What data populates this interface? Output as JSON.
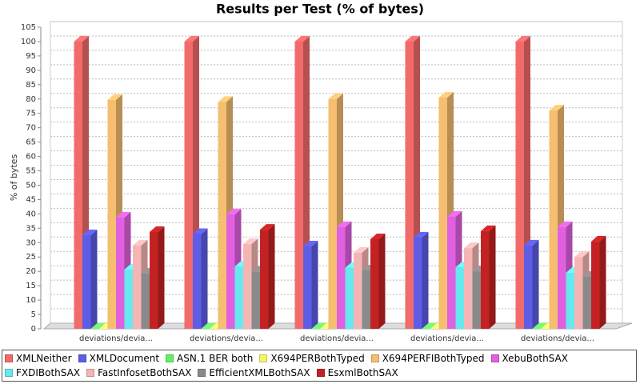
{
  "chart_data": {
    "type": "bar3d",
    "title": "Results per Test (% of bytes)",
    "y_label": "% of bytes",
    "categories": [
      "deviations/devia...",
      "deviations/devia...",
      "deviations/devia...",
      "deviations/devia...",
      "deviations/devia..."
    ],
    "series": [
      {
        "name": "XMLNeither",
        "color": "#f26b6b",
        "values": [
          100,
          100,
          100,
          100,
          100
        ]
      },
      {
        "name": "XMLDocument",
        "color": "#5d5de6",
        "values": [
          32.6,
          33,
          28.7,
          31.8,
          29
        ]
      },
      {
        "name": "ASN.1 BER both",
        "color": "#66ee66",
        "values": [
          0,
          0,
          0,
          0,
          0
        ]
      },
      {
        "name": "X694PERBothTyped",
        "color": "#f5f566",
        "values": [
          0,
          0,
          0,
          0,
          0
        ]
      },
      {
        "name": "X694PERFIBothTyped",
        "color": "#f5be70",
        "values": [
          79.7,
          79,
          80,
          80.5,
          76
        ]
      },
      {
        "name": "XebuBothSAX",
        "color": "#e060e0",
        "values": [
          38.7,
          39.8,
          35.4,
          39,
          35.4
        ]
      },
      {
        "name": "FXDIBothSAX",
        "color": "#66e8ee",
        "values": [
          20.6,
          21.7,
          21.2,
          21.4,
          19.5
        ]
      },
      {
        "name": "FastInfosetBothSAX",
        "color": "#f5b5b5",
        "values": [
          29,
          29.5,
          26.5,
          28.1,
          25
        ]
      },
      {
        "name": "EfficientXMLBothSAX",
        "color": "#8a8a8a",
        "values": [
          19.2,
          19.8,
          20.3,
          20,
          18.1
        ]
      },
      {
        "name": "EsxmlBothSAX",
        "color": "#c42222",
        "values": [
          33.7,
          34.5,
          31.2,
          34,
          30.4
        ]
      }
    ],
    "ylim": [
      0,
      105
    ],
    "yticks": [
      0,
      5,
      10,
      15,
      20,
      25,
      30,
      35,
      40,
      45,
      50,
      55,
      60,
      65,
      70,
      75,
      80,
      85,
      90,
      95,
      100,
      105
    ],
    "grid": true
  }
}
